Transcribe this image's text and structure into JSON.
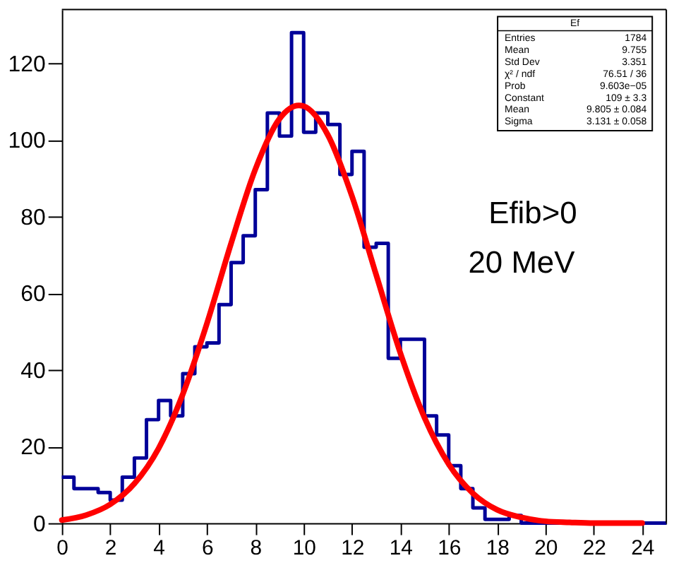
{
  "chart_data": {
    "type": "histogram",
    "bins": [
      0,
      0.5,
      1,
      1.5,
      2,
      2.5,
      3,
      3.5,
      4,
      4.5,
      5,
      5.5,
      6,
      6.5,
      7,
      7.5,
      8,
      8.5,
      9,
      9.5,
      10,
      10.5,
      11,
      11.5,
      12,
      12.5,
      13,
      13.5,
      14,
      14.5,
      15,
      15.5,
      16,
      16.5,
      17,
      17.5,
      18,
      18.5,
      19,
      19.5,
      20,
      20.5,
      21,
      21.5,
      22,
      22.5,
      23,
      23.5,
      24,
      24.5,
      25
    ],
    "values": [
      12,
      9,
      9,
      8,
      6,
      12,
      17,
      27,
      32,
      28,
      39,
      46,
      47,
      57,
      68,
      75,
      87,
      107,
      101,
      128,
      102,
      107,
      104,
      91,
      97,
      72,
      73,
      43,
      48,
      48,
      28,
      23,
      15,
      9,
      4,
      1,
      1,
      2,
      0,
      0,
      0,
      0,
      0,
      0,
      0,
      0,
      0,
      0,
      0,
      0
    ],
    "color": "#000099",
    "series": [
      {
        "type": "line",
        "color": "#ff0000",
        "x": [
          0,
          1,
          2,
          3,
          4,
          5,
          6,
          7,
          8,
          9,
          9.8,
          10,
          11,
          12,
          13,
          14,
          15,
          16,
          17,
          18,
          19,
          20,
          21,
          22,
          23,
          24
        ],
        "values": [
          0.8,
          2.1,
          4.9,
          10.3,
          19.5,
          33.6,
          52.1,
          73.0,
          92.3,
          105.5,
          109,
          108.8,
          101.3,
          85.3,
          64.8,
          44.4,
          27.5,
          15.4,
          7.8,
          3.5,
          1.5,
          0.5,
          0.2,
          0,
          0,
          0
        ]
      }
    ],
    "xlim": [
      0,
      25
    ],
    "ylim": [
      0,
      134
    ],
    "xticks": [
      0,
      2,
      4,
      6,
      8,
      10,
      12,
      14,
      16,
      18,
      20,
      22,
      24
    ],
    "yticks": [
      0,
      20,
      40,
      60,
      80,
      100,
      120
    ],
    "grid": false,
    "annotations": [
      "Ef",
      "Entries",
      "1784",
      "Mean",
      "9.755",
      "Std Dev",
      "3.351",
      "χ² / ndf",
      "76.51 / 36",
      "Prob",
      "9.603e−05",
      "Constant",
      "109 ± 3.3",
      "Mean",
      "9.805 ± 0.084",
      "Sigma",
      "3.131 ± 0.058",
      "Efib>0",
      "20 MeV"
    ]
  }
}
